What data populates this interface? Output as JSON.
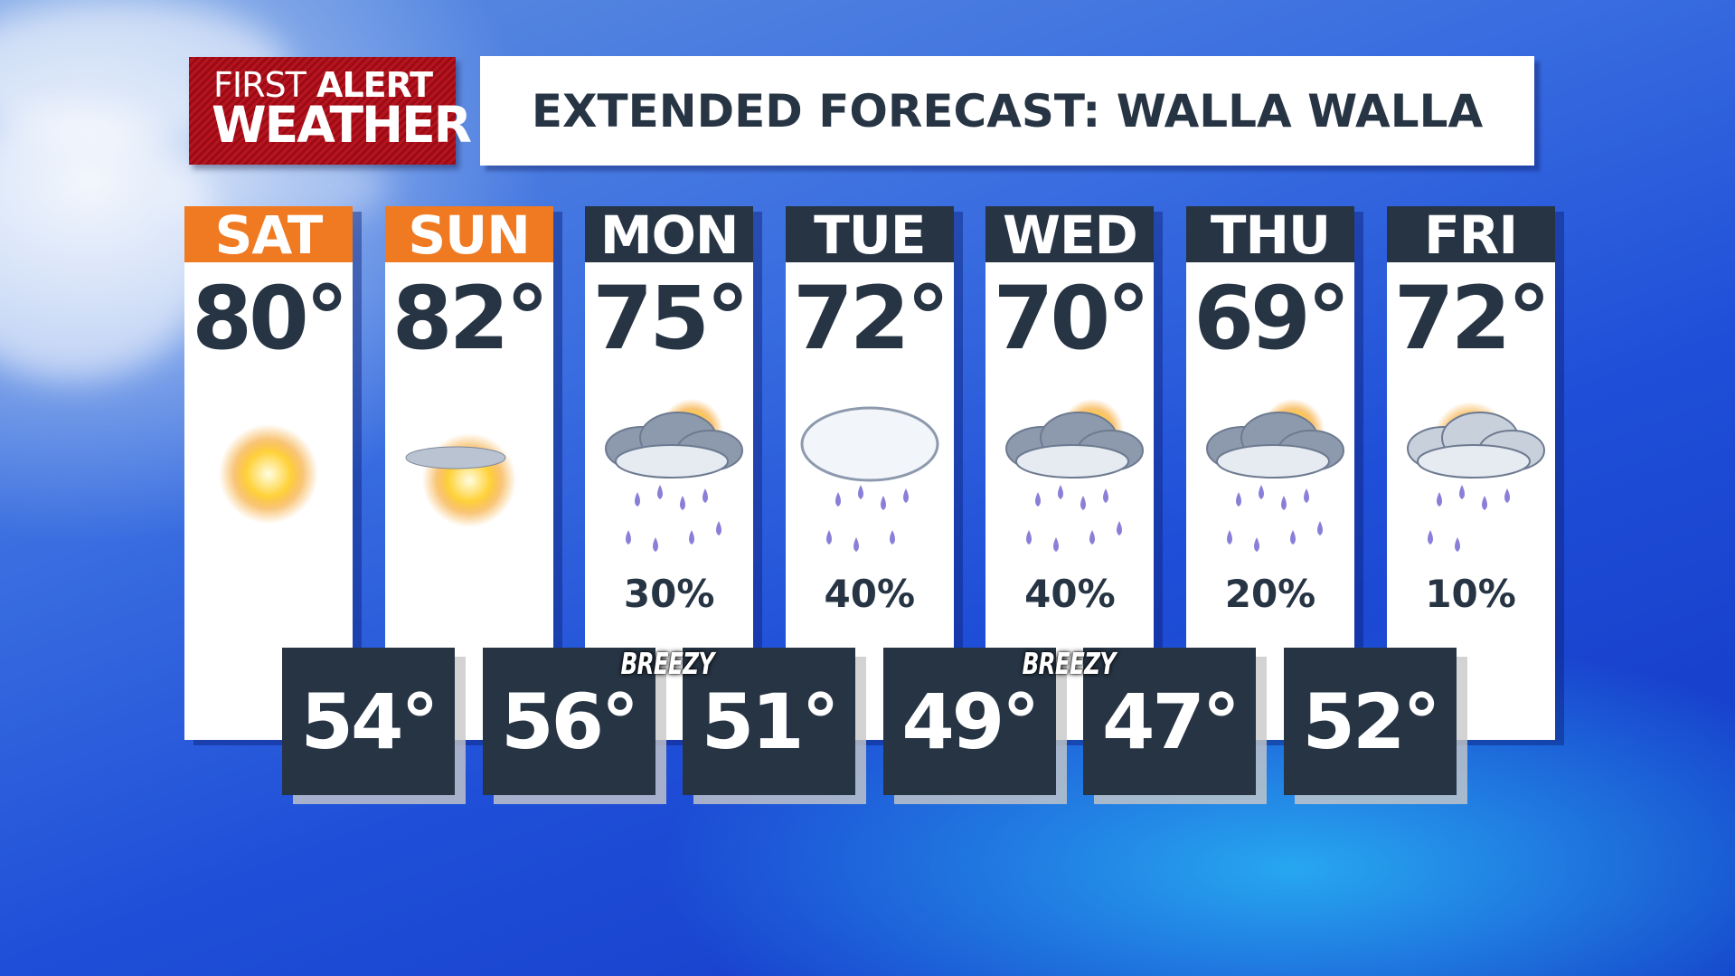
{
  "logo": {
    "line1a": "FIRST",
    "line1b": "ALERT",
    "line2": "WEATHER"
  },
  "title": "EXTENDED FORECAST: WALLA WALLA",
  "colors": {
    "weekend": "#f07a22",
    "weekday": "#263444",
    "logo": "#b51520"
  },
  "days": [
    {
      "day": "SAT",
      "high": "80°",
      "icon": "sunny",
      "precip": "",
      "weekend": true
    },
    {
      "day": "SUN",
      "high": "82°",
      "icon": "mostly-sunny",
      "precip": "",
      "weekend": true
    },
    {
      "day": "MON",
      "high": "75°",
      "icon": "showers-partly-cloudy",
      "precip": "30%"
    },
    {
      "day": "TUE",
      "high": "72°",
      "icon": "showers-cloudy",
      "precip": "40%"
    },
    {
      "day": "WED",
      "high": "70°",
      "icon": "showers-partly-cloudy",
      "precip": "40%"
    },
    {
      "day": "THU",
      "high": "69°",
      "icon": "showers-partly-cloudy",
      "precip": "20%"
    },
    {
      "day": "FRI",
      "high": "72°",
      "icon": "showers-partly-sunny",
      "precip": "10%"
    }
  ],
  "lows": [
    "54°",
    "56°",
    "51°",
    "49°",
    "47°",
    "52°"
  ],
  "notes": [
    {
      "text": "BREEZY"
    },
    {
      "text": "BREEZY"
    }
  ]
}
